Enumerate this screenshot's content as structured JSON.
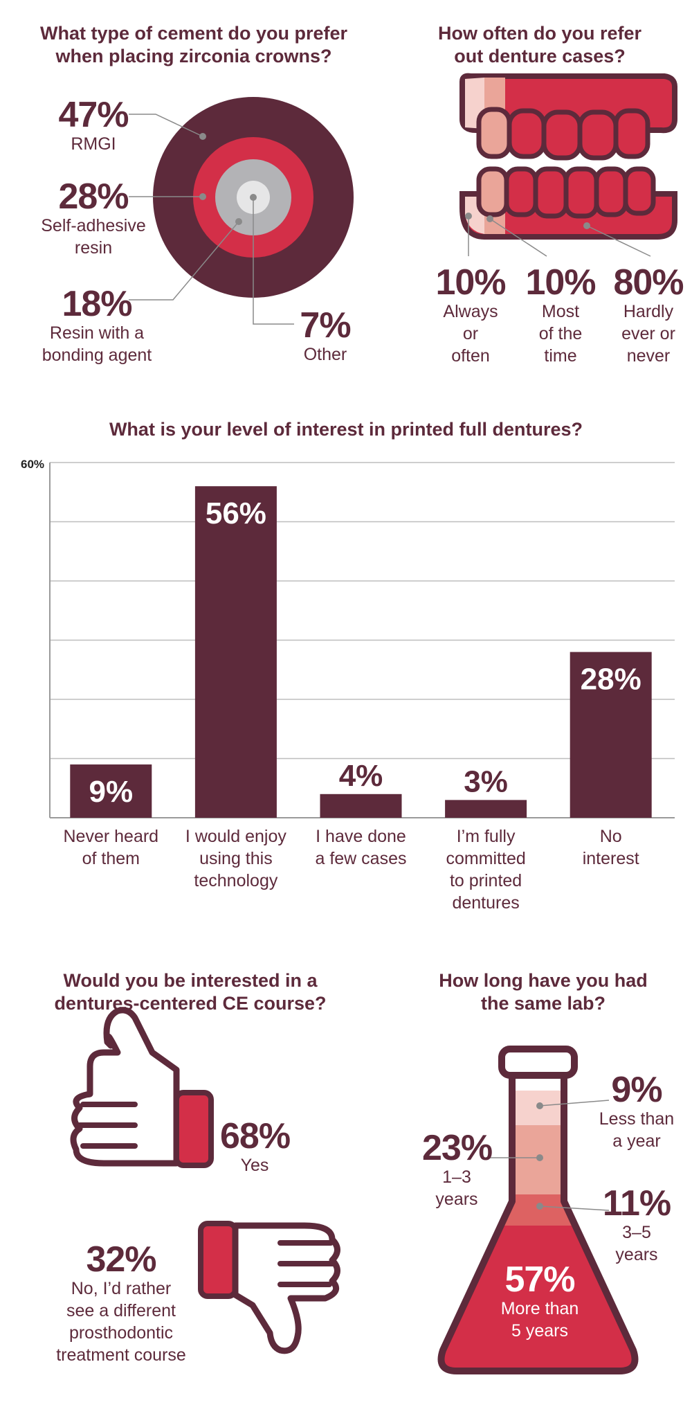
{
  "cement": {
    "title_line1": "What type of cement do you prefer",
    "title_line2": "when placing zirconia crowns?",
    "items": [
      {
        "pct": "47%",
        "label_line1": "RMGI",
        "label_line2": ""
      },
      {
        "pct": "28%",
        "label_line1": "Self-adhesive",
        "label_line2": "resin"
      },
      {
        "pct": "18%",
        "label_line1": "Resin with a",
        "label_line2": "bonding agent"
      },
      {
        "pct": "7%",
        "label_line1": "Other",
        "label_line2": ""
      }
    ]
  },
  "dentures_refer": {
    "title_line1": "How often do you refer",
    "title_line2": "out denture cases?",
    "items": [
      {
        "pct": "10%",
        "line1": "Always",
        "line2": "or",
        "line3": "often"
      },
      {
        "pct": "10%",
        "line1": "Most",
        "line2": "of the",
        "line3": "time"
      },
      {
        "pct": "80%",
        "line1": "Hardly",
        "line2": "ever or",
        "line3": "never"
      }
    ]
  },
  "interest": {
    "title": "What is your level of interest in printed full dentures?",
    "axis_max_label": "60%",
    "bar_labels": [
      "9%",
      "56%",
      "4%",
      "3%",
      "28%"
    ],
    "categories": [
      {
        "line1": "Never heard",
        "line2": "of them",
        "line3": "",
        "line4": ""
      },
      {
        "line1": "I would enjoy",
        "line2": "using this",
        "line3": "technology",
        "line4": ""
      },
      {
        "line1": "I have done",
        "line2": "a few cases",
        "line3": "",
        "line4": ""
      },
      {
        "line1": "I’m fully",
        "line2": "committed",
        "line3": "to printed",
        "line4": "dentures"
      },
      {
        "line1": "No",
        "line2": "interest",
        "line3": "",
        "line4": ""
      }
    ]
  },
  "course": {
    "title_line1": "Would you be interested in a",
    "title_line2": "dentures-centered CE course?",
    "yes_pct": "68%",
    "yes_label": "Yes",
    "no_pct": "32%",
    "no_line1": "No, I’d rather",
    "no_line2": "see a different",
    "no_line3": "prosthodontic",
    "no_line4": "treatment course"
  },
  "lab": {
    "title_line1": "How long have you had",
    "title_line2": "the same lab?",
    "items": [
      {
        "pct": "9%",
        "line1": "Less than",
        "line2": "a year"
      },
      {
        "pct": "23%",
        "line1": "1–3",
        "line2": "years"
      },
      {
        "pct": "11%",
        "line1": "3–5",
        "line2": "years"
      },
      {
        "pct": "57%",
        "line1": "More than",
        "line2": "5 years"
      }
    ]
  },
  "chart_data": [
    {
      "type": "pie",
      "title": "What type of cement do you prefer when placing zirconia crowns?",
      "categories": [
        "RMGI",
        "Self-adhesive resin",
        "Resin with a bonding agent",
        "Other"
      ],
      "values": [
        47,
        28,
        18,
        7
      ]
    },
    {
      "type": "pie",
      "title": "How often do you refer out denture cases?",
      "categories": [
        "Always or often",
        "Most of the time",
        "Hardly ever or never"
      ],
      "values": [
        10,
        10,
        80
      ]
    },
    {
      "type": "bar",
      "title": "What is your level of interest in printed full dentures?",
      "categories": [
        "Never heard of them",
        "I would enjoy using this technology",
        "I have done a few cases",
        "I’m fully committed to printed dentures",
        "No interest"
      ],
      "values": [
        9,
        56,
        4,
        3,
        28
      ],
      "ylim": [
        0,
        60
      ],
      "grid": true
    },
    {
      "type": "pie",
      "title": "Would you be interested in a dentures-centered CE course?",
      "categories": [
        "Yes",
        "No, I’d rather see a different prosthodontic treatment course"
      ],
      "values": [
        68,
        32
      ]
    },
    {
      "type": "pie",
      "title": "How long have you had the same lab?",
      "categories": [
        "Less than a year",
        "1–3 years",
        "3–5 years",
        "More than 5 years"
      ],
      "values": [
        9,
        23,
        11,
        57
      ]
    }
  ]
}
